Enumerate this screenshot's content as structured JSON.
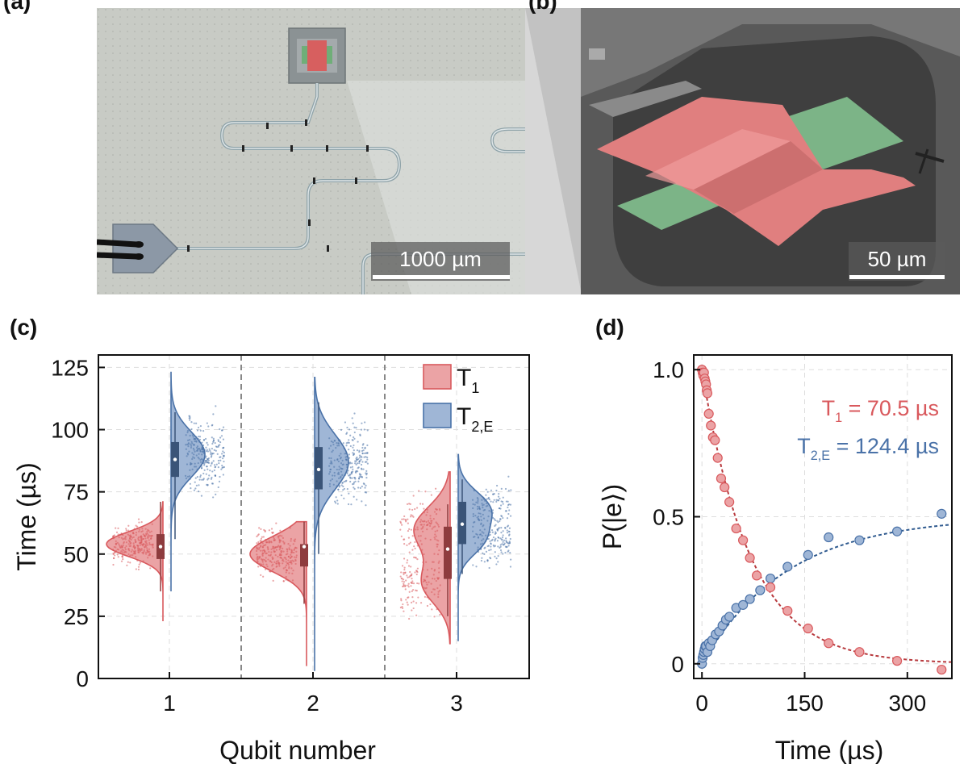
{
  "panels": {
    "a": {
      "label": "(a)",
      "scalebar": "1000 µm"
    },
    "b": {
      "label": "(b)",
      "scalebar": "50 µm"
    },
    "c": {
      "label": "(c)"
    },
    "d": {
      "label": "(d)"
    }
  },
  "colors": {
    "t1": "#d9595d",
    "t2": "#4a72a8",
    "t1_fill": "#eba3a5",
    "t2_fill": "#9fb6d6",
    "t1_box": "#8e3c3e",
    "t2_box": "#3a5478"
  },
  "chart_data": [
    {
      "type": "violin",
      "panel": "c",
      "xlabel": "Qubit number",
      "ylabel": "Time (µs)",
      "ylim": [
        0,
        130
      ],
      "yticks": [
        0,
        25,
        50,
        75,
        100,
        125
      ],
      "categories": [
        "1",
        "2",
        "3"
      ],
      "legend": {
        "placement": "top-right",
        "entries": [
          {
            "name": "T",
            "sub": "1"
          },
          {
            "name": "T",
            "sub": "2,E"
          }
        ]
      },
      "series": [
        {
          "name": "T1",
          "q1": [
            48,
            58
          ],
          "median": [
            53,
            53,
            52
          ],
          "quartiles": [
            [
              48,
              58
            ],
            [
              45,
              54
            ],
            [
              40,
              61
            ]
          ],
          "whiskers": [
            [
              35,
              71
            ],
            [
              30,
              63
            ],
            [
              25,
              70
            ]
          ],
          "ranges": [
            [
              23,
              71
            ],
            [
              5,
              63
            ],
            [
              14,
              83
            ]
          ]
        },
        {
          "name": "T2,E",
          "median": [
            88,
            84,
            62
          ],
          "quartiles": [
            [
              81,
              95
            ],
            [
              76,
              93
            ],
            [
              54,
              71
            ]
          ],
          "whiskers": [
            [
              56,
              107
            ],
            [
              50,
              111
            ],
            [
              42,
              80
            ]
          ],
          "ranges": [
            [
              35,
              123
            ],
            [
              3,
              121
            ],
            [
              15,
              90
            ]
          ]
        }
      ]
    },
    {
      "type": "scatter",
      "panel": "d",
      "xlabel": "Time (µs)",
      "ylabel": "P(|e⟩)",
      "xlim": [
        -12,
        365
      ],
      "ylim": [
        -0.05,
        1.05
      ],
      "xticks": [
        0,
        150,
        300
      ],
      "yticks": [
        0,
        0.5,
        1.0
      ],
      "yticklabels": [
        "0",
        "0.5",
        "1.0"
      ],
      "annotations": [
        {
          "name": "T",
          "sub": "1",
          "text": " = 70.5 µs",
          "series": "T1"
        },
        {
          "name": "T",
          "sub": "2,E",
          "text": " = 124.4 µs",
          "series": "T2,E"
        }
      ],
      "series": [
        {
          "name": "T1",
          "tau": 70.5,
          "x": [
            0,
            1,
            2,
            3,
            4,
            5,
            6,
            7,
            8,
            10,
            13,
            16,
            19,
            23,
            28,
            33,
            40,
            50,
            60,
            70,
            80,
            100,
            125,
            155,
            185,
            230,
            285,
            350
          ],
          "y": [
            1.0,
            0.99,
            0.98,
            0.99,
            0.97,
            0.96,
            0.95,
            0.93,
            0.92,
            0.85,
            0.81,
            0.77,
            0.76,
            0.7,
            0.63,
            0.6,
            0.55,
            0.46,
            0.42,
            0.36,
            0.3,
            0.26,
            0.18,
            0.12,
            0.07,
            0.04,
            0.01,
            -0.02
          ]
        },
        {
          "name": "T2,E",
          "tau": 124.4,
          "x": [
            0,
            1,
            2,
            3,
            4,
            5,
            6,
            8,
            10,
            12,
            15,
            20,
            25,
            30,
            35,
            40,
            50,
            60,
            70,
            85,
            100,
            125,
            155,
            185,
            230,
            285,
            350
          ],
          "y": [
            0.0,
            0.02,
            0.03,
            0.04,
            0.05,
            0.06,
            0.06,
            0.04,
            0.07,
            0.06,
            0.08,
            0.1,
            0.11,
            0.13,
            0.15,
            0.16,
            0.19,
            0.2,
            0.22,
            0.25,
            0.29,
            0.33,
            0.37,
            0.43,
            0.42,
            0.45,
            0.51
          ]
        }
      ]
    }
  ]
}
